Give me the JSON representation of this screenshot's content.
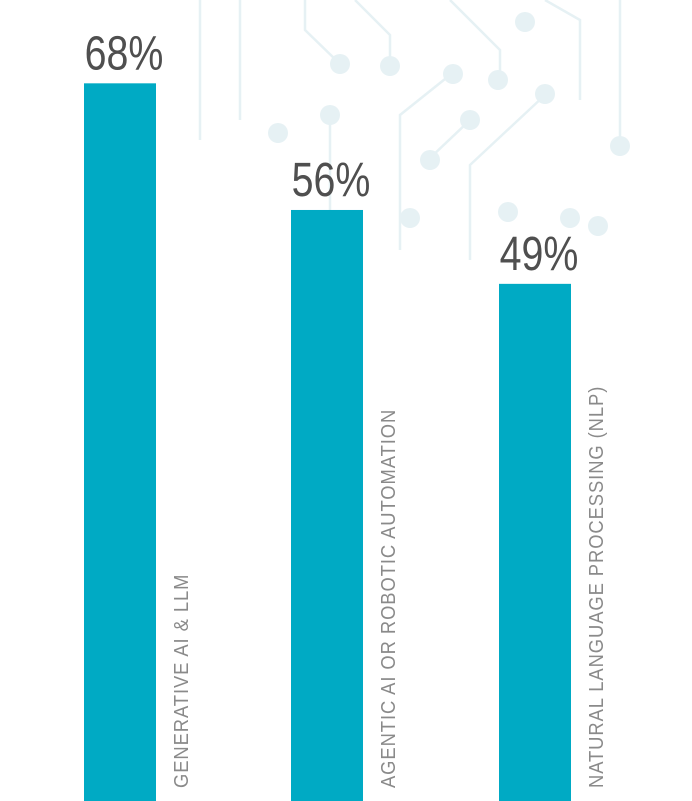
{
  "chart_data": {
    "type": "bar",
    "categories": [
      "GENERATIVE AI & LLM",
      "AGENTIC AI OR ROBOTIC AUTOMATION",
      "NATURAL LANGUAGE PROCESSING (NLP)"
    ],
    "values": [
      68,
      56,
      49
    ],
    "value_labels": [
      "68%",
      "56%",
      "49%"
    ],
    "bar_color": "#00aac4",
    "title": "",
    "xlabel": "",
    "ylabel": "",
    "ylim": [
      0,
      74
    ],
    "grid": false,
    "legend": "none"
  }
}
